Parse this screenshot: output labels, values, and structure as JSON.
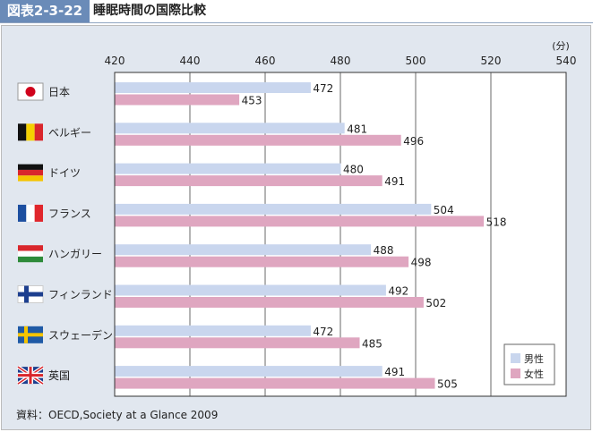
{
  "header": {
    "figure_label": "図表2-3-22",
    "title": "睡眠時間の国際比較"
  },
  "source": "資料：OECD,Society at a Glance 2009",
  "colors": {
    "male": "#c9d6ee",
    "female": "#dfa6c0"
  },
  "chart_data": {
    "type": "bar",
    "orientation": "horizontal",
    "unit_label": "(分)",
    "xlim": [
      420,
      540
    ],
    "ticks": [
      420,
      440,
      460,
      480,
      500,
      520,
      540
    ],
    "categories": [
      "日本",
      "ベルギー",
      "ドイツ",
      "フランス",
      "ハンガリー",
      "フィンランド",
      "スウェーデン",
      "英国"
    ],
    "flags": [
      "japan-flag",
      "belgium-flag",
      "germany-flag",
      "france-flag",
      "hungary-flag",
      "finland-flag",
      "sweden-flag",
      "uk-flag"
    ],
    "series": [
      {
        "name": "男性",
        "values": [
          472,
          481,
          480,
          504,
          488,
          492,
          472,
          491
        ]
      },
      {
        "name": "女性",
        "values": [
          453,
          496,
          491,
          518,
          498,
          502,
          485,
          505
        ]
      }
    ],
    "legend_position": "bottom-right",
    "grid": true
  }
}
